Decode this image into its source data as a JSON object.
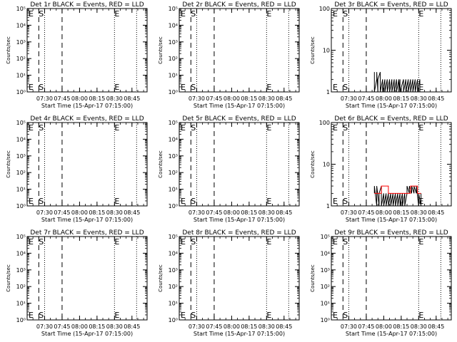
{
  "x_axis_title": "Start Time (15-Apr-17 07:15:00)",
  "x_tick_labels": [
    "07:30",
    "07:45",
    "08:00",
    "08:15",
    "08:30",
    "08:45"
  ],
  "y_axis_title": "Counts/sec",
  "colors": {
    "events": "#000000",
    "lld": "#ff0000",
    "background": "#ffffff"
  },
  "chart_data": [
    {
      "type": "line",
      "title": "Det 1r BLACK = Events, RED = LLD",
      "xlabel": "Start Time (15-Apr-17 07:15:00)",
      "ylabel": "Counts/sec",
      "scale": "log",
      "ylim": [
        1,
        100000
      ],
      "xlim": [
        "07:15",
        "08:58"
      ],
      "y_tick_labels": [
        "10⁰",
        "10¹",
        "10²",
        "10³",
        "10⁴",
        "10⁵"
      ],
      "markers": {
        "E": [
          "07:15",
          "08:30"
        ],
        "S": [
          "07:25"
        ]
      },
      "dashed_lines": [
        "07:25",
        "07:45"
      ],
      "dotted_lines": [
        "07:30",
        "08:30",
        "08:49"
      ],
      "series": []
    },
    {
      "type": "line",
      "title": "Det 2r BLACK = Events, RED = LLD",
      "xlabel": "Start Time (15-Apr-17 07:15:00)",
      "ylabel": "Counts/sec",
      "scale": "log",
      "ylim": [
        1,
        100000
      ],
      "xlim": [
        "07:15",
        "08:58"
      ],
      "y_tick_labels": [
        "10⁰",
        "10¹",
        "10²",
        "10³",
        "10⁴",
        "10⁵"
      ],
      "markers": {
        "E": [
          "07:15",
          "08:30"
        ],
        "S": [
          "07:25"
        ]
      },
      "dashed_lines": [
        "07:25",
        "07:45"
      ],
      "dotted_lines": [
        "07:30",
        "08:30",
        "08:49"
      ],
      "series": []
    },
    {
      "type": "line",
      "title": "Det 3r BLACK = Events, RED = LLD",
      "xlabel": "Start Time (15-Apr-17 07:15:00)",
      "ylabel": "Counts/sec",
      "scale": "log",
      "ylim": [
        1,
        100
      ],
      "xlim": [
        "07:15",
        "08:58"
      ],
      "y_tick_labels": [
        "1",
        "10",
        "100"
      ],
      "markers": {
        "E": [
          "07:15",
          "08:30"
        ],
        "S": [
          "07:25"
        ]
      },
      "dashed_lines": [
        "07:25",
        "07:45"
      ],
      "dotted_lines": [
        "07:30",
        "08:30",
        "08:49"
      ],
      "series": [
        {
          "color": "#000000",
          "x": [
            "07:52",
            "07:52",
            "07:54",
            "07:54",
            "07:55",
            "07:55",
            "07:57",
            "07:57",
            "07:59",
            "07:59",
            "08:01",
            "08:01",
            "08:03",
            "08:03",
            "08:05",
            "08:05",
            "08:07",
            "08:07",
            "08:09",
            "08:09",
            "08:11",
            "08:11",
            "08:13",
            "08:13",
            "08:14",
            "08:14",
            "08:17",
            "08:17",
            "08:19",
            "08:19",
            "08:21",
            "08:21",
            "08:23",
            "08:23",
            "08:25",
            "08:25",
            "08:27",
            "08:27",
            "08:29",
            "08:29",
            "08:31",
            "08:31"
          ],
          "y": [
            3,
            1,
            2,
            3,
            1,
            2,
            3,
            1,
            2,
            1,
            2,
            1,
            2,
            1,
            2,
            1,
            2,
            1,
            2,
            1,
            2,
            1,
            2,
            1,
            2,
            1,
            2,
            1,
            2,
            1,
            2,
            1,
            2,
            1,
            2,
            1,
            2,
            1,
            2,
            1,
            2,
            1
          ]
        }
      ]
    },
    {
      "type": "line",
      "title": "Det 4r BLACK = Events, RED = LLD",
      "xlabel": "Start Time (15-Apr-17 07:15:00)",
      "ylabel": "Counts/sec",
      "scale": "log",
      "ylim": [
        1,
        100000
      ],
      "xlim": [
        "07:15",
        "08:58"
      ],
      "y_tick_labels": [
        "10⁰",
        "10¹",
        "10²",
        "10³",
        "10⁴",
        "10⁵"
      ],
      "markers": {
        "E": [
          "07:15",
          "08:30"
        ],
        "S": [
          "07:25"
        ]
      },
      "dashed_lines": [
        "07:25",
        "07:45"
      ],
      "dotted_lines": [
        "07:30",
        "08:30",
        "08:49"
      ],
      "series": []
    },
    {
      "type": "line",
      "title": "Det 5r BLACK = Events, RED = LLD",
      "xlabel": "Start Time (15-Apr-17 07:15:00)",
      "ylabel": "Counts/sec",
      "scale": "log",
      "ylim": [
        1,
        100000
      ],
      "xlim": [
        "07:15",
        "08:58"
      ],
      "y_tick_labels": [
        "10⁰",
        "10¹",
        "10²",
        "10³",
        "10⁴",
        "10⁵"
      ],
      "markers": {
        "E": [
          "07:15",
          "08:30"
        ],
        "S": [
          "07:25"
        ]
      },
      "dashed_lines": [
        "07:25",
        "07:45"
      ],
      "dotted_lines": [
        "07:30",
        "08:30",
        "08:49"
      ],
      "series": []
    },
    {
      "type": "line",
      "title": "Det 6r BLACK = Events, RED = LLD",
      "xlabel": "Start Time (15-Apr-17 07:15:00)",
      "ylabel": "Counts/sec",
      "scale": "log",
      "ylim": [
        1,
        100
      ],
      "xlim": [
        "07:15",
        "08:58"
      ],
      "y_tick_labels": [
        "1",
        "10",
        "100"
      ],
      "markers": {
        "E": [
          "07:15",
          "08:30"
        ],
        "S": [
          "07:25"
        ]
      },
      "dashed_lines": [
        "07:25",
        "07:45"
      ],
      "dotted_lines": [
        "07:30",
        "08:30",
        "08:49"
      ],
      "series": [
        {
          "color": "#000000",
          "x": [
            "07:52",
            "07:52",
            "07:54",
            "07:54",
            "07:56",
            "07:56",
            "07:58",
            "07:58",
            "08:00",
            "08:00",
            "08:02",
            "08:02",
            "08:04",
            "08:04",
            "08:06",
            "08:06",
            "08:08",
            "08:08",
            "08:10",
            "08:10",
            "08:12",
            "08:12",
            "08:14",
            "08:14",
            "08:16",
            "08:16",
            "08:18",
            "08:18",
            "08:20",
            "08:20",
            "08:22",
            "08:22",
            "08:24",
            "08:24",
            "08:26",
            "08:26",
            "08:28",
            "08:28",
            "08:30",
            "08:30",
            "08:32",
            "08:32"
          ],
          "y": [
            2,
            3,
            1,
            3,
            1,
            2,
            3,
            1,
            2,
            1,
            2,
            1,
            2,
            1,
            2,
            1,
            2,
            1,
            2,
            1,
            2,
            1,
            2,
            1,
            2,
            1,
            2,
            1,
            2,
            3,
            2,
            3,
            2,
            3,
            2,
            3,
            2,
            3,
            1,
            2,
            1,
            2
          ]
        },
        {
          "color": "#ff0000",
          "x": [
            "07:52",
            "07:58",
            "07:58",
            "08:04",
            "08:04",
            "08:10",
            "08:10",
            "08:17",
            "08:17",
            "08:23",
            "08:23",
            "08:29",
            "08:29",
            "08:32"
          ],
          "y": [
            2,
            2,
            3,
            3,
            2,
            2,
            2,
            2,
            2,
            2,
            3,
            3,
            2,
            2
          ]
        }
      ]
    },
    {
      "type": "line",
      "title": "Det 7r BLACK = Events, RED = LLD",
      "xlabel": "Start Time (15-Apr-17 07:15:00)",
      "ylabel": "Counts/sec",
      "scale": "log",
      "ylim": [
        1,
        100000
      ],
      "xlim": [
        "07:15",
        "08:58"
      ],
      "y_tick_labels": [
        "10⁰",
        "10¹",
        "10²",
        "10³",
        "10⁴",
        "10⁵"
      ],
      "markers": {
        "E": [
          "07:15",
          "08:30"
        ],
        "S": [
          "07:25"
        ]
      },
      "dashed_lines": [
        "07:25",
        "07:45"
      ],
      "dotted_lines": [
        "07:30",
        "08:30",
        "08:49"
      ],
      "series": []
    },
    {
      "type": "line",
      "title": "Det 8r BLACK = Events, RED = LLD",
      "xlabel": "Start Time (15-Apr-17 07:15:00)",
      "ylabel": "Counts/sec",
      "scale": "log",
      "ylim": [
        1,
        100000
      ],
      "xlim": [
        "07:15",
        "08:58"
      ],
      "y_tick_labels": [
        "10⁰",
        "10¹",
        "10²",
        "10³",
        "10⁴",
        "10⁵"
      ],
      "markers": {
        "E": [
          "07:15",
          "08:30"
        ],
        "S": [
          "07:25"
        ]
      },
      "dashed_lines": [
        "07:25",
        "07:45"
      ],
      "dotted_lines": [
        "07:30",
        "08:30",
        "08:49"
      ],
      "series": []
    },
    {
      "type": "line",
      "title": "Det 9r BLACK = Events, RED = LLD",
      "xlabel": "Start Time (15-Apr-17 07:15:00)",
      "ylabel": "Counts/sec",
      "scale": "log",
      "ylim": [
        1,
        100000
      ],
      "xlim": [
        "07:15",
        "08:58"
      ],
      "y_tick_labels": [
        "10⁰",
        "10¹",
        "10²",
        "10³",
        "10⁴",
        "10⁵"
      ],
      "markers": {
        "E": [
          "07:15",
          "08:30"
        ],
        "S": [
          "07:25"
        ]
      },
      "dashed_lines": [
        "07:25",
        "07:45"
      ],
      "dotted_lines": [
        "07:30",
        "08:30",
        "08:49"
      ],
      "series": []
    }
  ]
}
